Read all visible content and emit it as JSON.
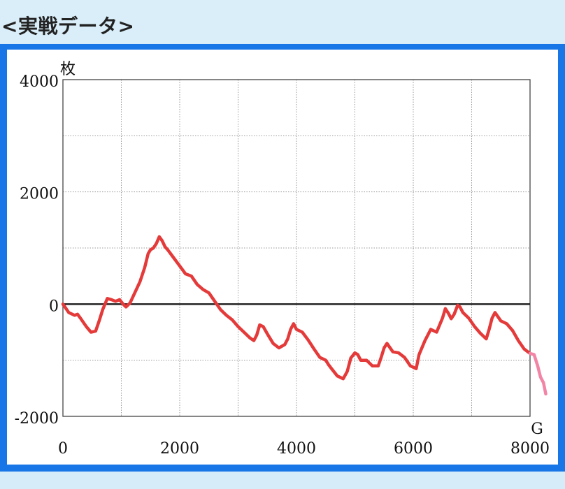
{
  "header": {
    "title": "<実戦データ>"
  },
  "colors": {
    "header_bg": "#d9eef9",
    "frame_blue": "#1876e6",
    "line_main": "#e43a3a",
    "line_tail": "#f284a6",
    "zero_line": "#222222",
    "grid": "#9a9a9a"
  },
  "chart_data": {
    "type": "line",
    "title": "",
    "xlabel": "G",
    "ylabel": "枚",
    "xlim": [
      0,
      8000
    ],
    "ylim": [
      -2000,
      4000
    ],
    "x_ticks": [
      0,
      2000,
      4000,
      6000,
      8000
    ],
    "y_ticks": [
      -2000,
      0,
      2000,
      4000
    ],
    "x_ticks_labels": [
      "0",
      "2000",
      "4000",
      "6000",
      "8000"
    ],
    "y_ticks_labels": [
      "-2000",
      "0",
      "2000",
      "4000"
    ],
    "grid": true,
    "series": [
      {
        "color": "#e43a3a",
        "points": [
          [
            0,
            0
          ],
          [
            100,
            -150
          ],
          [
            200,
            -200
          ],
          [
            250,
            -180
          ],
          [
            300,
            -250
          ],
          [
            400,
            -400
          ],
          [
            480,
            -500
          ],
          [
            560,
            -480
          ],
          [
            620,
            -300
          ],
          [
            680,
            -100
          ],
          [
            760,
            100
          ],
          [
            830,
            80
          ],
          [
            900,
            50
          ],
          [
            970,
            80
          ],
          [
            1030,
            0
          ],
          [
            1080,
            -50
          ],
          [
            1150,
            20
          ],
          [
            1230,
            200
          ],
          [
            1320,
            400
          ],
          [
            1400,
            650
          ],
          [
            1460,
            900
          ],
          [
            1500,
            970
          ],
          [
            1550,
            1000
          ],
          [
            1600,
            1080
          ],
          [
            1650,
            1200
          ],
          [
            1700,
            1130
          ],
          [
            1750,
            1020
          ],
          [
            1800,
            960
          ],
          [
            1900,
            820
          ],
          [
            2000,
            680
          ],
          [
            2100,
            540
          ],
          [
            2200,
            500
          ],
          [
            2300,
            350
          ],
          [
            2400,
            260
          ],
          [
            2500,
            200
          ],
          [
            2600,
            50
          ],
          [
            2700,
            -100
          ],
          [
            2800,
            -200
          ],
          [
            2900,
            -280
          ],
          [
            3000,
            -400
          ],
          [
            3100,
            -500
          ],
          [
            3200,
            -600
          ],
          [
            3270,
            -650
          ],
          [
            3320,
            -550
          ],
          [
            3370,
            -370
          ],
          [
            3430,
            -400
          ],
          [
            3500,
            -530
          ],
          [
            3600,
            -700
          ],
          [
            3700,
            -780
          ],
          [
            3800,
            -720
          ],
          [
            3850,
            -620
          ],
          [
            3900,
            -450
          ],
          [
            3950,
            -350
          ],
          [
            4000,
            -450
          ],
          [
            4100,
            -500
          ],
          [
            4200,
            -640
          ],
          [
            4300,
            -800
          ],
          [
            4400,
            -950
          ],
          [
            4500,
            -1000
          ],
          [
            4550,
            -1080
          ],
          [
            4600,
            -1150
          ],
          [
            4700,
            -1280
          ],
          [
            4800,
            -1330
          ],
          [
            4870,
            -1200
          ],
          [
            4930,
            -960
          ],
          [
            5000,
            -870
          ],
          [
            5050,
            -900
          ],
          [
            5100,
            -1000
          ],
          [
            5200,
            -1000
          ],
          [
            5300,
            -1100
          ],
          [
            5400,
            -1100
          ],
          [
            5450,
            -950
          ],
          [
            5500,
            -780
          ],
          [
            5550,
            -700
          ],
          [
            5650,
            -850
          ],
          [
            5750,
            -870
          ],
          [
            5850,
            -950
          ],
          [
            5950,
            -1100
          ],
          [
            6050,
            -1150
          ],
          [
            6100,
            -900
          ],
          [
            6200,
            -650
          ],
          [
            6300,
            -450
          ],
          [
            6400,
            -500
          ],
          [
            6500,
            -250
          ],
          [
            6550,
            -80
          ],
          [
            6600,
            -160
          ],
          [
            6650,
            -260
          ],
          [
            6700,
            -180
          ],
          [
            6760,
            -20
          ],
          [
            6800,
            -50
          ],
          [
            6850,
            -150
          ],
          [
            6950,
            -250
          ],
          [
            7050,
            -400
          ],
          [
            7150,
            -520
          ],
          [
            7250,
            -620
          ],
          [
            7300,
            -450
          ],
          [
            7350,
            -250
          ],
          [
            7400,
            -150
          ],
          [
            7500,
            -300
          ],
          [
            7600,
            -350
          ],
          [
            7700,
            -470
          ],
          [
            7800,
            -650
          ],
          [
            7900,
            -800
          ],
          [
            8000,
            -880
          ]
        ]
      },
      {
        "color": "#f284a6",
        "points": [
          [
            8000,
            -880
          ],
          [
            8070,
            -900
          ],
          [
            8130,
            -1100
          ],
          [
            8180,
            -1300
          ],
          [
            8230,
            -1400
          ],
          [
            8270,
            -1600
          ]
        ]
      }
    ]
  }
}
